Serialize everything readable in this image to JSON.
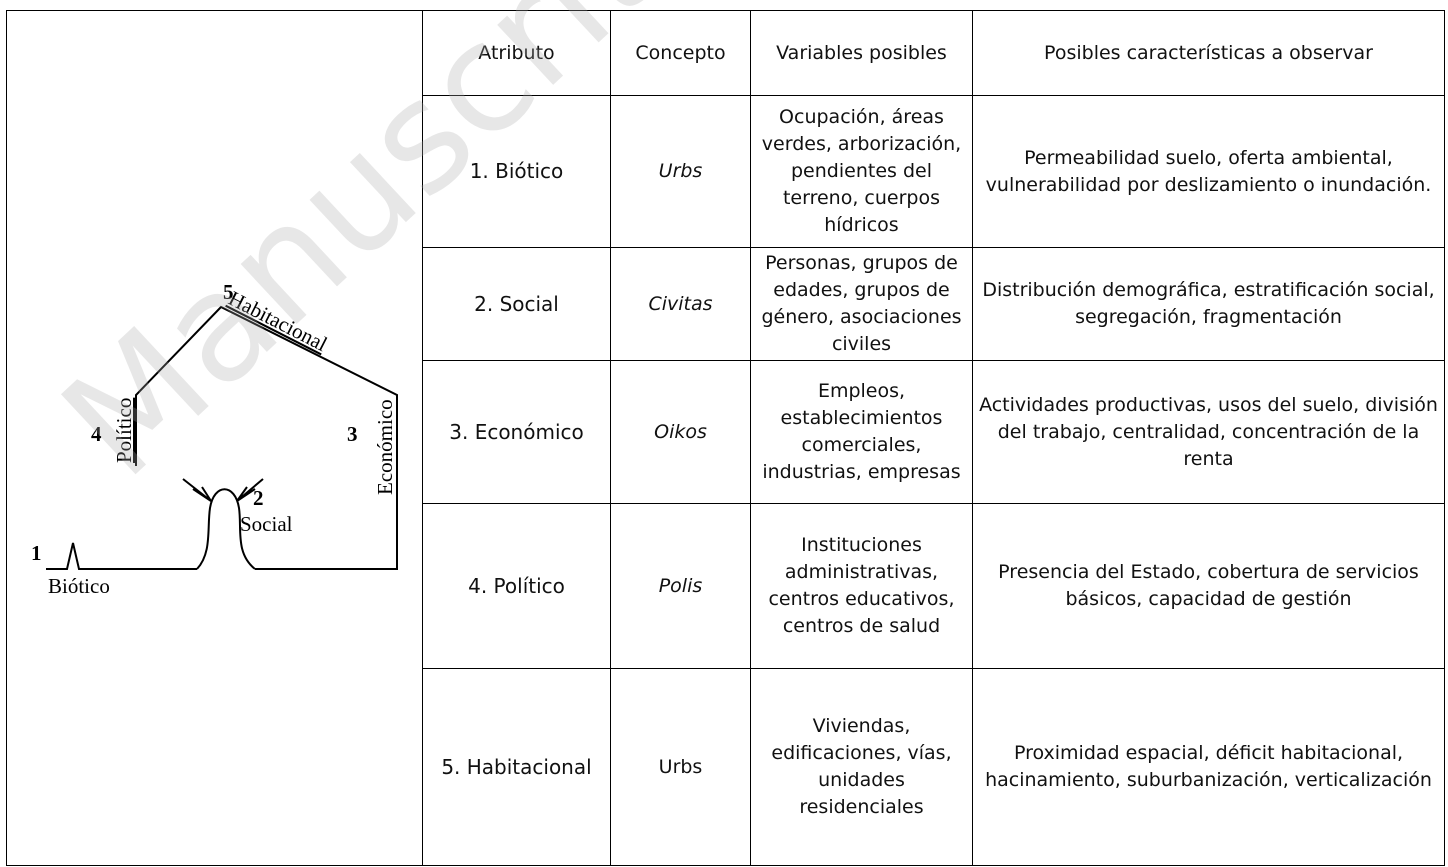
{
  "watermark": "Manuscrito Preliminar",
  "diagram": {
    "labels": {
      "n5": "5",
      "habitacional": "Habitacional",
      "n4": "4",
      "politico": "Político",
      "n3": "3",
      "economico": "Económico",
      "n2": "2",
      "social": "Social",
      "n1": "1",
      "biotico": "Biótico"
    }
  },
  "table": {
    "header": [
      "Atributo",
      "Concepto",
      "Variables posibles",
      "Posibles características a observar"
    ],
    "rows": [
      [
        "1. Biótico",
        "Urbs",
        "Ocupación, áreas verdes, arborización, pendientes del terreno, cuerpos hídricos",
        "Permeabilidad suelo, oferta ambiental, vulnerabilidad por deslizamiento o inundación."
      ],
      [
        "2. Social",
        "Civitas",
        "Personas, grupos de edades, grupos de género, asociaciones civiles",
        "Distribución demográfica, estratificación social, segregación, fragmentación"
      ],
      [
        "3. Económico",
        "Oikos",
        "Empleos, establecimientos comerciales, industrias, empresas",
        "Actividades productivas, usos del suelo, división del trabajo, centralidad, concentración de la renta"
      ],
      [
        "4. Político",
        "Polis",
        "Instituciones administrativas, centros educativos, centros de salud",
        "Presencia del Estado, cobertura de servicios básicos, capacidad de gestión"
      ],
      [
        "5. Habitacional",
        "Urbs",
        "Viviendas, edificaciones, vías, unidades residenciales",
        "Proximidad espacial, déficit habitacional, hacinamiento, suburbanización, verticalización"
      ]
    ]
  }
}
